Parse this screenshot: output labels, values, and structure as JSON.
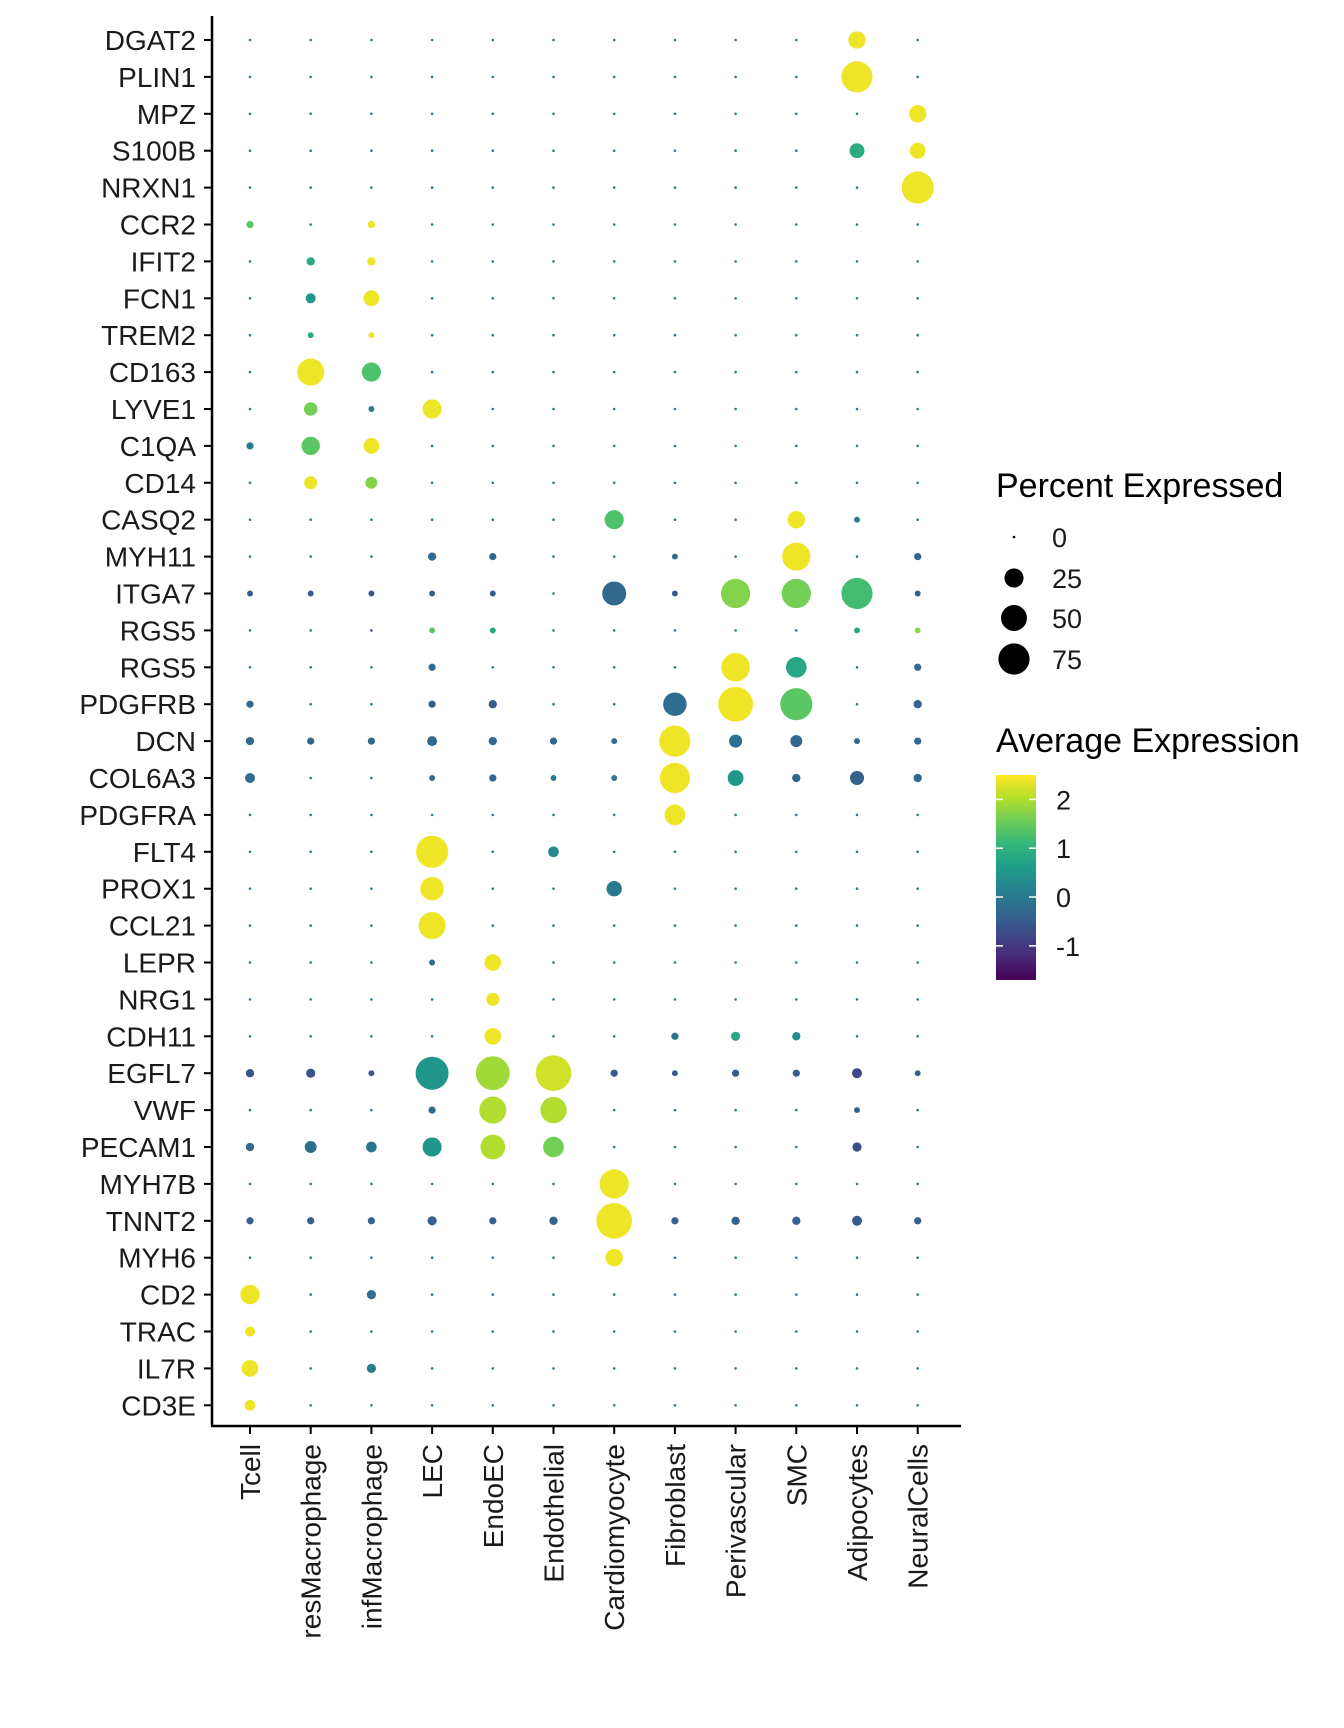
{
  "chart_data": {
    "type": "dotplot",
    "xlabel": "",
    "ylabel": "",
    "cell_types": [
      "Tcell",
      "resMacrophage",
      "infMacrophage",
      "LEC",
      "EndoEC",
      "Endothelial",
      "Cardiomyocyte",
      "Fibroblast",
      "Perivascular",
      "SMC",
      "Adipocytes",
      "NeuralCells"
    ],
    "genes": [
      "DGAT2",
      "PLIN1",
      "MPZ",
      "S100B",
      "NRXN1",
      "CCR2",
      "IFIT2",
      "FCN1",
      "TREM2",
      "CD163",
      "LYVE1",
      "C1QA",
      "CD14",
      "CASQ2",
      "MYH11",
      "ITGA7",
      "RGS5",
      "RGS5",
      "PDGFRB",
      "DCN",
      "COL6A3",
      "PDGFRA",
      "FLT4",
      "PROX1",
      "CCL21",
      "LEPR",
      "NRG1",
      "CDH11",
      "EGFL7",
      "VWF",
      "PECAM1",
      "MYH7B",
      "TNNT2",
      "MYH6",
      "CD2",
      "TRAC",
      "IL7R",
      "CD3E"
    ],
    "percent": [
      [
        0,
        0,
        0,
        0,
        0,
        0,
        0,
        0,
        0,
        0,
        20,
        0
      ],
      [
        0,
        0,
        0,
        0,
        0,
        0,
        0,
        0,
        0,
        0,
        75,
        0
      ],
      [
        0,
        0,
        0,
        0,
        0,
        0,
        0,
        0,
        0,
        0,
        0,
        20
      ],
      [
        0,
        0,
        0,
        0,
        0,
        0,
        0,
        0,
        0,
        0,
        14,
        16
      ],
      [
        0,
        0,
        0,
        0,
        0,
        0,
        0,
        0,
        0,
        0,
        0,
        80
      ],
      [
        2,
        0,
        2,
        0,
        0,
        0,
        0,
        0,
        0,
        0,
        0,
        0
      ],
      [
        0,
        3,
        3,
        0,
        0,
        0,
        0,
        0,
        0,
        0,
        0,
        0
      ],
      [
        0,
        5,
        16,
        0,
        0,
        0,
        0,
        0,
        0,
        0,
        0,
        0
      ],
      [
        0,
        1,
        1,
        0,
        0,
        0,
        0,
        0,
        0,
        0,
        0,
        0
      ],
      [
        0,
        55,
        25,
        0,
        0,
        0,
        0,
        0,
        0,
        0,
        0,
        0
      ],
      [
        0,
        11,
        1,
        25,
        0,
        0,
        0,
        0,
        0,
        0,
        0,
        0
      ],
      [
        2,
        23,
        16,
        0,
        0,
        0,
        0,
        0,
        0,
        0,
        0,
        0
      ],
      [
        0,
        10,
        8,
        0,
        0,
        0,
        0,
        0,
        0,
        0,
        0,
        0
      ],
      [
        0,
        0,
        0,
        0,
        0,
        0,
        25,
        0,
        0,
        20,
        1,
        0
      ],
      [
        0,
        0,
        0,
        3,
        2,
        0,
        0,
        1,
        0,
        60,
        0,
        2
      ],
      [
        1,
        1,
        1,
        1,
        1,
        0,
        42,
        1,
        65,
        65,
        75,
        1
      ],
      [
        0,
        0,
        0,
        1,
        1,
        0,
        0,
        0,
        0,
        0,
        1,
        1
      ],
      [
        0,
        0,
        0,
        2,
        0,
        0,
        0,
        0,
        62,
        30,
        0,
        2
      ],
      [
        2,
        0,
        0,
        2,
        3,
        0,
        0,
        40,
        95,
        80,
        0,
        3
      ],
      [
        3,
        2,
        2,
        5,
        3,
        2,
        1,
        75,
        10,
        8,
        1,
        2
      ],
      [
        5,
        0,
        0,
        1,
        2,
        1,
        1,
        70,
        16,
        3,
        12,
        3
      ],
      [
        0,
        0,
        0,
        0,
        0,
        0,
        0,
        30,
        0,
        0,
        0,
        0
      ],
      [
        0,
        0,
        0,
        80,
        0,
        6,
        0,
        0,
        0,
        0,
        0,
        0
      ],
      [
        0,
        0,
        0,
        40,
        0,
        0,
        15,
        0,
        0,
        0,
        0,
        0
      ],
      [
        0,
        0,
        0,
        55,
        0,
        0,
        0,
        0,
        0,
        0,
        0,
        0
      ],
      [
        0,
        0,
        0,
        1,
        18,
        0,
        0,
        0,
        0,
        0,
        0,
        0
      ],
      [
        0,
        0,
        0,
        0,
        10,
        0,
        0,
        0,
        0,
        0,
        0,
        0
      ],
      [
        0,
        0,
        0,
        0,
        18,
        0,
        0,
        2,
        4,
        3,
        0,
        0
      ],
      [
        3,
        4,
        1,
        85,
        90,
        100,
        2,
        1,
        2,
        2,
        5,
        1
      ],
      [
        0,
        0,
        0,
        2,
        55,
        52,
        0,
        0,
        0,
        0,
        1,
        0
      ],
      [
        3,
        8,
        6,
        25,
        45,
        30,
        0,
        0,
        0,
        0,
        4,
        0
      ],
      [
        0,
        0,
        0,
        0,
        0,
        0,
        65,
        0,
        0,
        0,
        0,
        0
      ],
      [
        2,
        2,
        2,
        4,
        2,
        3,
        100,
        2,
        3,
        3,
        5,
        2
      ],
      [
        0,
        0,
        0,
        0,
        0,
        0,
        20,
        0,
        0,
        0,
        0,
        0
      ],
      [
        26,
        0,
        4,
        0,
        0,
        0,
        0,
        0,
        0,
        0,
        0,
        0
      ],
      [
        5,
        0,
        0,
        0,
        0,
        0,
        0,
        0,
        0,
        0,
        0,
        0
      ],
      [
        18,
        0,
        4,
        0,
        0,
        0,
        0,
        0,
        0,
        0,
        0,
        0
      ],
      [
        6,
        0,
        0,
        0,
        0,
        0,
        0,
        0,
        0,
        0,
        0,
        0
      ]
    ],
    "avg_expression": [
      [
        0,
        0,
        0,
        0,
        0,
        0,
        0,
        0,
        0,
        0,
        2.4,
        0
      ],
      [
        0,
        0,
        0,
        0,
        0,
        0,
        0,
        0,
        0,
        0,
        2.4,
        0
      ],
      [
        0,
        0,
        0,
        0,
        0,
        0,
        0,
        0,
        0,
        0,
        0,
        2.4
      ],
      [
        0,
        0,
        0,
        0,
        0,
        0,
        0,
        0,
        0,
        0,
        0.9,
        2.4
      ],
      [
        0,
        0,
        0,
        0,
        0,
        0,
        0,
        0,
        0,
        0,
        0,
        2.4
      ],
      [
        1.4,
        0,
        2.4,
        0,
        0,
        0,
        0,
        0,
        0,
        0,
        0,
        0
      ],
      [
        0,
        0.8,
        2.4,
        0,
        0,
        0,
        0,
        0,
        0,
        0,
        0,
        0
      ],
      [
        0,
        0.5,
        2.4,
        0,
        0,
        0,
        0,
        0,
        0,
        0,
        0,
        0
      ],
      [
        0,
        0.8,
        2.4,
        0,
        0,
        0,
        0,
        0,
        0,
        0,
        0,
        0
      ],
      [
        0,
        2.4,
        1.3,
        0,
        0,
        0,
        0,
        0,
        0,
        0,
        0,
        0
      ],
      [
        0,
        1.6,
        0,
        2.4,
        0,
        0,
        0,
        0,
        0,
        0,
        0,
        0
      ],
      [
        0,
        1.4,
        2.4,
        0,
        0,
        0,
        0,
        0,
        0,
        0,
        0,
        0
      ],
      [
        0,
        2.4,
        1.7,
        0,
        0,
        0,
        0,
        0,
        0,
        0,
        0,
        0
      ],
      [
        0,
        0,
        0,
        0,
        0,
        0,
        1.3,
        0,
        0,
        2.4,
        0,
        0
      ],
      [
        0,
        0,
        0,
        -0.3,
        -0.3,
        0,
        0,
        -0.3,
        0,
        2.4,
        0,
        -0.3
      ],
      [
        -0.5,
        -0.5,
        -0.5,
        -0.5,
        -0.5,
        0,
        -0.3,
        -0.5,
        1.7,
        1.6,
        1.2,
        -0.5
      ],
      [
        0,
        0,
        -0.8,
        1.4,
        0.8,
        0,
        0,
        0,
        0,
        0,
        0.8,
        1.8
      ],
      [
        0,
        0,
        0,
        -0.3,
        0,
        0,
        0,
        0,
        2.4,
        0.8,
        0,
        -0.3
      ],
      [
        -0.3,
        0,
        0,
        -0.5,
        -0.5,
        0,
        0,
        -0.2,
        2.4,
        1.4,
        0,
        -0.4
      ],
      [
        -0.3,
        -0.3,
        -0.3,
        -0.3,
        -0.3,
        -0.3,
        -0.3,
        2.4,
        -0.2,
        -0.3,
        -0.3,
        -0.3
      ],
      [
        -0.2,
        0,
        0,
        -0.3,
        -0.3,
        0,
        0,
        2.4,
        0.5,
        -0.3,
        -0.4,
        -0.3
      ],
      [
        0,
        0,
        0,
        0,
        0,
        0,
        0,
        2.4,
        0,
        0,
        0,
        0
      ],
      [
        0,
        0,
        0,
        2.4,
        0,
        0.3,
        0,
        0,
        0,
        0,
        0,
        0
      ],
      [
        0,
        0,
        0,
        2.4,
        0,
        0,
        0,
        0,
        0,
        0,
        0,
        0
      ],
      [
        0,
        0,
        0,
        2.4,
        0,
        0,
        0,
        0,
        0,
        0,
        0,
        0
      ],
      [
        0,
        0,
        0,
        -0.3,
        2.4,
        0,
        0,
        0,
        0,
        0,
        0,
        0
      ],
      [
        0,
        0,
        0,
        0,
        2.4,
        0,
        0,
        0,
        0,
        0,
        0,
        0
      ],
      [
        0,
        0,
        0,
        0,
        2.4,
        0,
        0,
        -0.2,
        0.8,
        0.3,
        0,
        0
      ],
      [
        -0.6,
        -0.6,
        -0.6,
        0.5,
        1.9,
        2.2,
        -0.5,
        -0.5,
        -0.5,
        -0.5,
        -0.8,
        -0.5
      ],
      [
        0,
        0,
        0,
        -0.3,
        2.0,
        2.0,
        0,
        0,
        0,
        0,
        -0.4,
        0
      ],
      [
        -0.3,
        -0.2,
        -0.1,
        0.5,
        2.0,
        1.6,
        0,
        0,
        0,
        0,
        -0.7,
        0
      ],
      [
        0,
        0,
        0,
        0,
        0,
        0,
        2.4,
        0,
        0,
        0,
        0,
        0
      ],
      [
        -0.4,
        -0.4,
        -0.4,
        -0.4,
        -0.4,
        -0.4,
        2.4,
        -0.4,
        -0.4,
        -0.4,
        -0.5,
        -0.4
      ],
      [
        0,
        0,
        0,
        0,
        0,
        0,
        2.4,
        0,
        0,
        0,
        0,
        0
      ],
      [
        2.4,
        0,
        -0.2,
        0,
        0,
        0,
        0,
        0,
        0,
        0,
        0,
        0
      ],
      [
        2.4,
        0,
        0,
        0,
        0,
        0,
        0,
        0,
        0,
        0,
        0,
        0
      ],
      [
        2.4,
        0,
        0.1,
        0,
        0,
        0,
        0,
        0,
        0,
        0,
        0,
        0
      ],
      [
        2.4,
        0,
        0,
        0,
        0,
        0,
        0,
        0,
        0,
        0,
        0,
        0
      ]
    ],
    "size_legend": {
      "title": "Percent Expressed",
      "breaks": [
        0,
        25,
        50,
        75
      ],
      "labels": [
        "0",
        "25",
        "50",
        "75"
      ]
    },
    "color_legend": {
      "title": "Average Expression",
      "limits": [
        -1.7,
        2.5
      ],
      "breaks": [
        2,
        1,
        0,
        -1
      ],
      "labels": [
        "2",
        "1",
        "0",
        "-1"
      ],
      "palette": [
        "#440154",
        "#482878",
        "#3e4989",
        "#31688e",
        "#26828e",
        "#1f9e89",
        "#35b779",
        "#6ece58",
        "#b5de2b",
        "#fde725"
      ]
    }
  }
}
